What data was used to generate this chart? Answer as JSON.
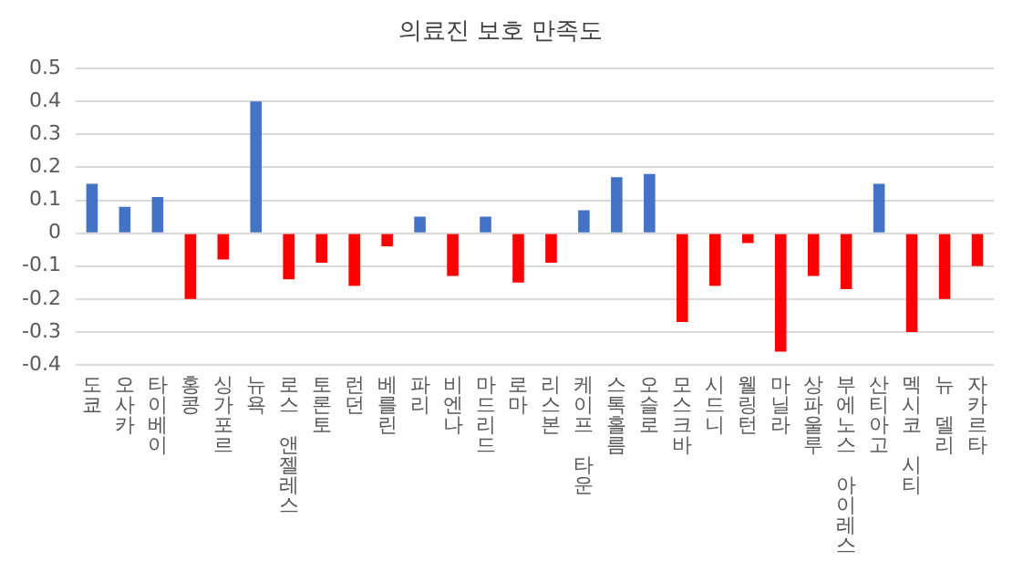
{
  "chart_data": {
    "type": "bar",
    "title": "의료진 보호 만족도",
    "categories": [
      "도쿄",
      "오사카",
      "타이베이",
      "홍콩",
      "싱가포르",
      "뉴욕",
      "로스 앤젤레스",
      "토론토",
      "런던",
      "베를린",
      "파리",
      "비엔나",
      "마드리드",
      "로마",
      "리스본",
      "케이프 타운",
      "스톡홀름",
      "오슬로",
      "모스크바",
      "시드니",
      "웰링턴",
      "마닐라",
      "상파울루",
      "부에노스 아이레스",
      "산티아고",
      "멕시코 시티",
      "뉴 델리",
      "자카르타"
    ],
    "values": [
      0.15,
      0.08,
      0.11,
      -0.2,
      -0.08,
      0.4,
      -0.14,
      -0.09,
      -0.16,
      -0.04,
      0.05,
      -0.13,
      0.05,
      -0.15,
      -0.09,
      0.07,
      0.17,
      0.18,
      -0.27,
      -0.16,
      -0.03,
      -0.36,
      -0.13,
      -0.17,
      0.15,
      -0.3,
      -0.2,
      -0.1
    ],
    "colors": [
      "#4472c4",
      "#4472c4",
      "#4472c4",
      "#ff0000",
      "#ff0000",
      "#4472c4",
      "#ff0000",
      "#ff0000",
      "#ff0000",
      "#ff0000",
      "#4472c4",
      "#ff0000",
      "#4472c4",
      "#ff0000",
      "#ff0000",
      "#4472c4",
      "#4472c4",
      "#4472c4",
      "#ff0000",
      "#ff0000",
      "#ff0000",
      "#ff0000",
      "#ff0000",
      "#ff0000",
      "#4472c4",
      "#ff0000",
      "#ff0000",
      "#ff0000"
    ],
    "ylim": [
      -0.4,
      0.5
    ],
    "yticks": [
      -0.4,
      -0.3,
      -0.2,
      -0.1,
      0,
      0.1,
      0.2,
      0.3,
      0.4,
      0.5
    ],
    "grid": "y"
  }
}
